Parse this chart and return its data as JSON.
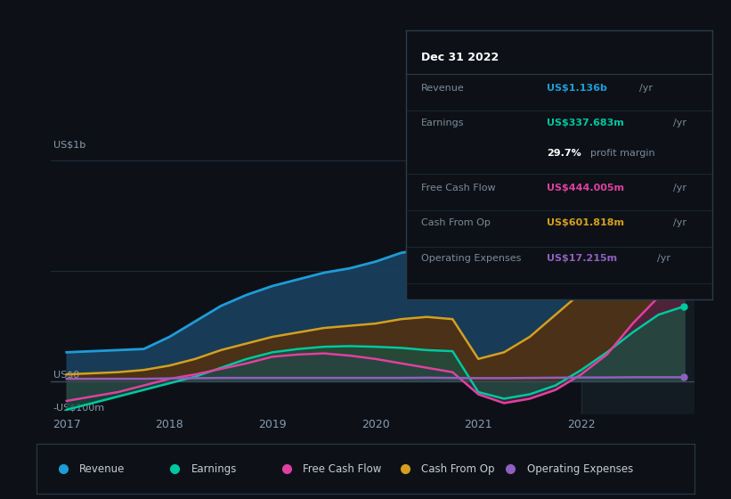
{
  "background_color": "#0d1117",
  "chart_bg_color": "#0d1117",
  "axis_label_color": "#8a9bb0",
  "grid_color": "#1e2d3d",
  "years_x": [
    2017.0,
    2017.25,
    2017.5,
    2017.75,
    2018.0,
    2018.25,
    2018.5,
    2018.75,
    2019.0,
    2019.25,
    2019.5,
    2019.75,
    2020.0,
    2020.25,
    2020.5,
    2020.75,
    2021.0,
    2021.25,
    2021.5,
    2021.75,
    2022.0,
    2022.25,
    2022.5,
    2022.75,
    2023.0
  ],
  "revenue": [
    130,
    135,
    140,
    145,
    200,
    270,
    340,
    390,
    430,
    460,
    490,
    510,
    540,
    580,
    600,
    590,
    500,
    530,
    600,
    700,
    820,
    950,
    1050,
    1120,
    1136
  ],
  "earnings": [
    -130,
    -100,
    -70,
    -40,
    -10,
    20,
    60,
    100,
    130,
    145,
    155,
    158,
    155,
    150,
    140,
    135,
    -50,
    -80,
    -60,
    -20,
    50,
    130,
    220,
    300,
    338
  ],
  "free_cash_flow": [
    -90,
    -70,
    -50,
    -20,
    10,
    30,
    55,
    80,
    110,
    120,
    125,
    115,
    100,
    80,
    60,
    40,
    -60,
    -100,
    -80,
    -40,
    30,
    120,
    260,
    380,
    444
  ],
  "cash_from_op": [
    30,
    35,
    40,
    50,
    70,
    100,
    140,
    170,
    200,
    220,
    240,
    250,
    260,
    280,
    290,
    280,
    100,
    130,
    200,
    300,
    400,
    480,
    550,
    590,
    602
  ],
  "operating_expenses": [
    10,
    10,
    10,
    10,
    12,
    13,
    14,
    14,
    14,
    14,
    14,
    14,
    14,
    14,
    15,
    14,
    13,
    13,
    14,
    15,
    16,
    16,
    17,
    17,
    17
  ],
  "revenue_color": "#1e9cd7",
  "earnings_color": "#00c8a0",
  "free_cash_flow_color": "#e040a0",
  "cash_from_op_color": "#d4a020",
  "operating_expenses_color": "#9060c0",
  "revenue_fill": "#1a4060",
  "earnings_fill": "#1a5040",
  "free_cash_flow_fill": "#502040",
  "cash_from_op_fill": "#503010",
  "xtick_positions": [
    2017,
    2018,
    2019,
    2020,
    2021,
    2022
  ],
  "xtick_labels": [
    "2017",
    "2018",
    "2019",
    "2020",
    "2021",
    "2022"
  ],
  "tooltip_title": "Dec 31 2022",
  "tooltip_bg": "#0d1117",
  "tooltip_border": "#2a3a4a",
  "legend_items": [
    "Revenue",
    "Earnings",
    "Free Cash Flow",
    "Cash From Op",
    "Operating Expenses"
  ],
  "legend_colors": [
    "#1e9cd7",
    "#00c8a0",
    "#e040a0",
    "#d4a020",
    "#9060c0"
  ]
}
